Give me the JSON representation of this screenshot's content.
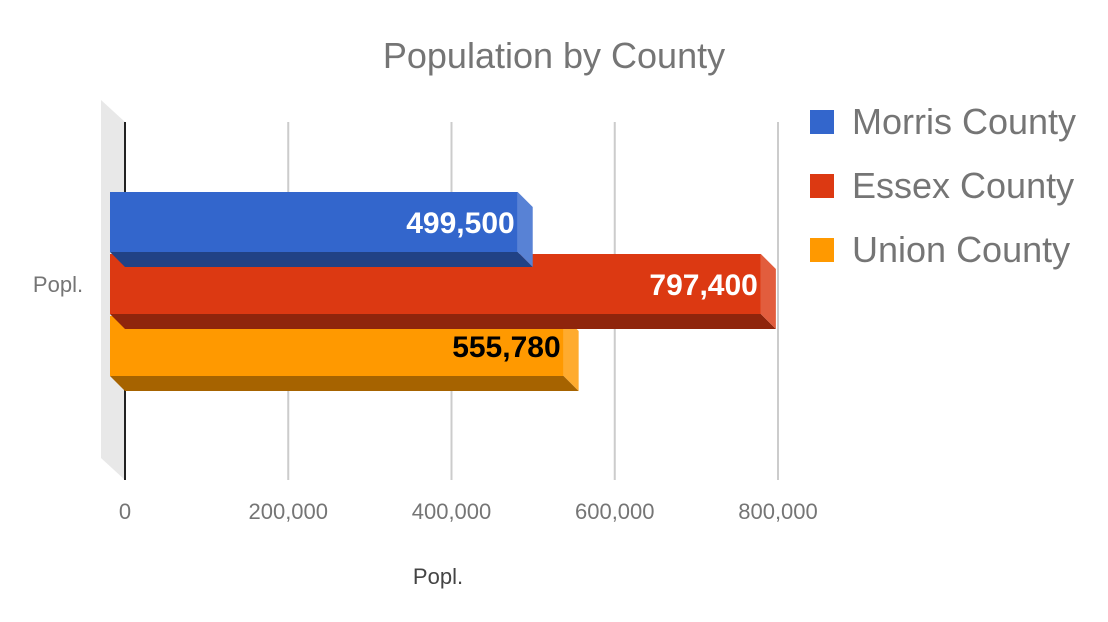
{
  "chart_data": {
    "type": "bar",
    "orientation": "horizontal",
    "style": "3d",
    "title": "Population by County",
    "xlabel": "Popl.",
    "ylabel": "",
    "categories": [
      "Popl."
    ],
    "series": [
      {
        "name": "Morris County",
        "values": [
          499500
        ],
        "value_label": "499,500",
        "color": "#3366cc",
        "label_color": "#ffffff"
      },
      {
        "name": "Essex County",
        "values": [
          797400
        ],
        "value_label": "797,400",
        "color": "#dc3912",
        "label_color": "#ffffff"
      },
      {
        "name": "Union County",
        "values": [
          555780
        ],
        "value_label": "555,780",
        "color": "#ff9900",
        "label_color": "#000000"
      }
    ],
    "xlim": [
      0,
      800000
    ],
    "x_ticks": [
      0,
      200000,
      400000,
      600000,
      800000
    ],
    "x_tick_labels": [
      "0",
      "200,000",
      "400,000",
      "600,000",
      "800,000"
    ],
    "grid": true,
    "legend_position": "right"
  }
}
